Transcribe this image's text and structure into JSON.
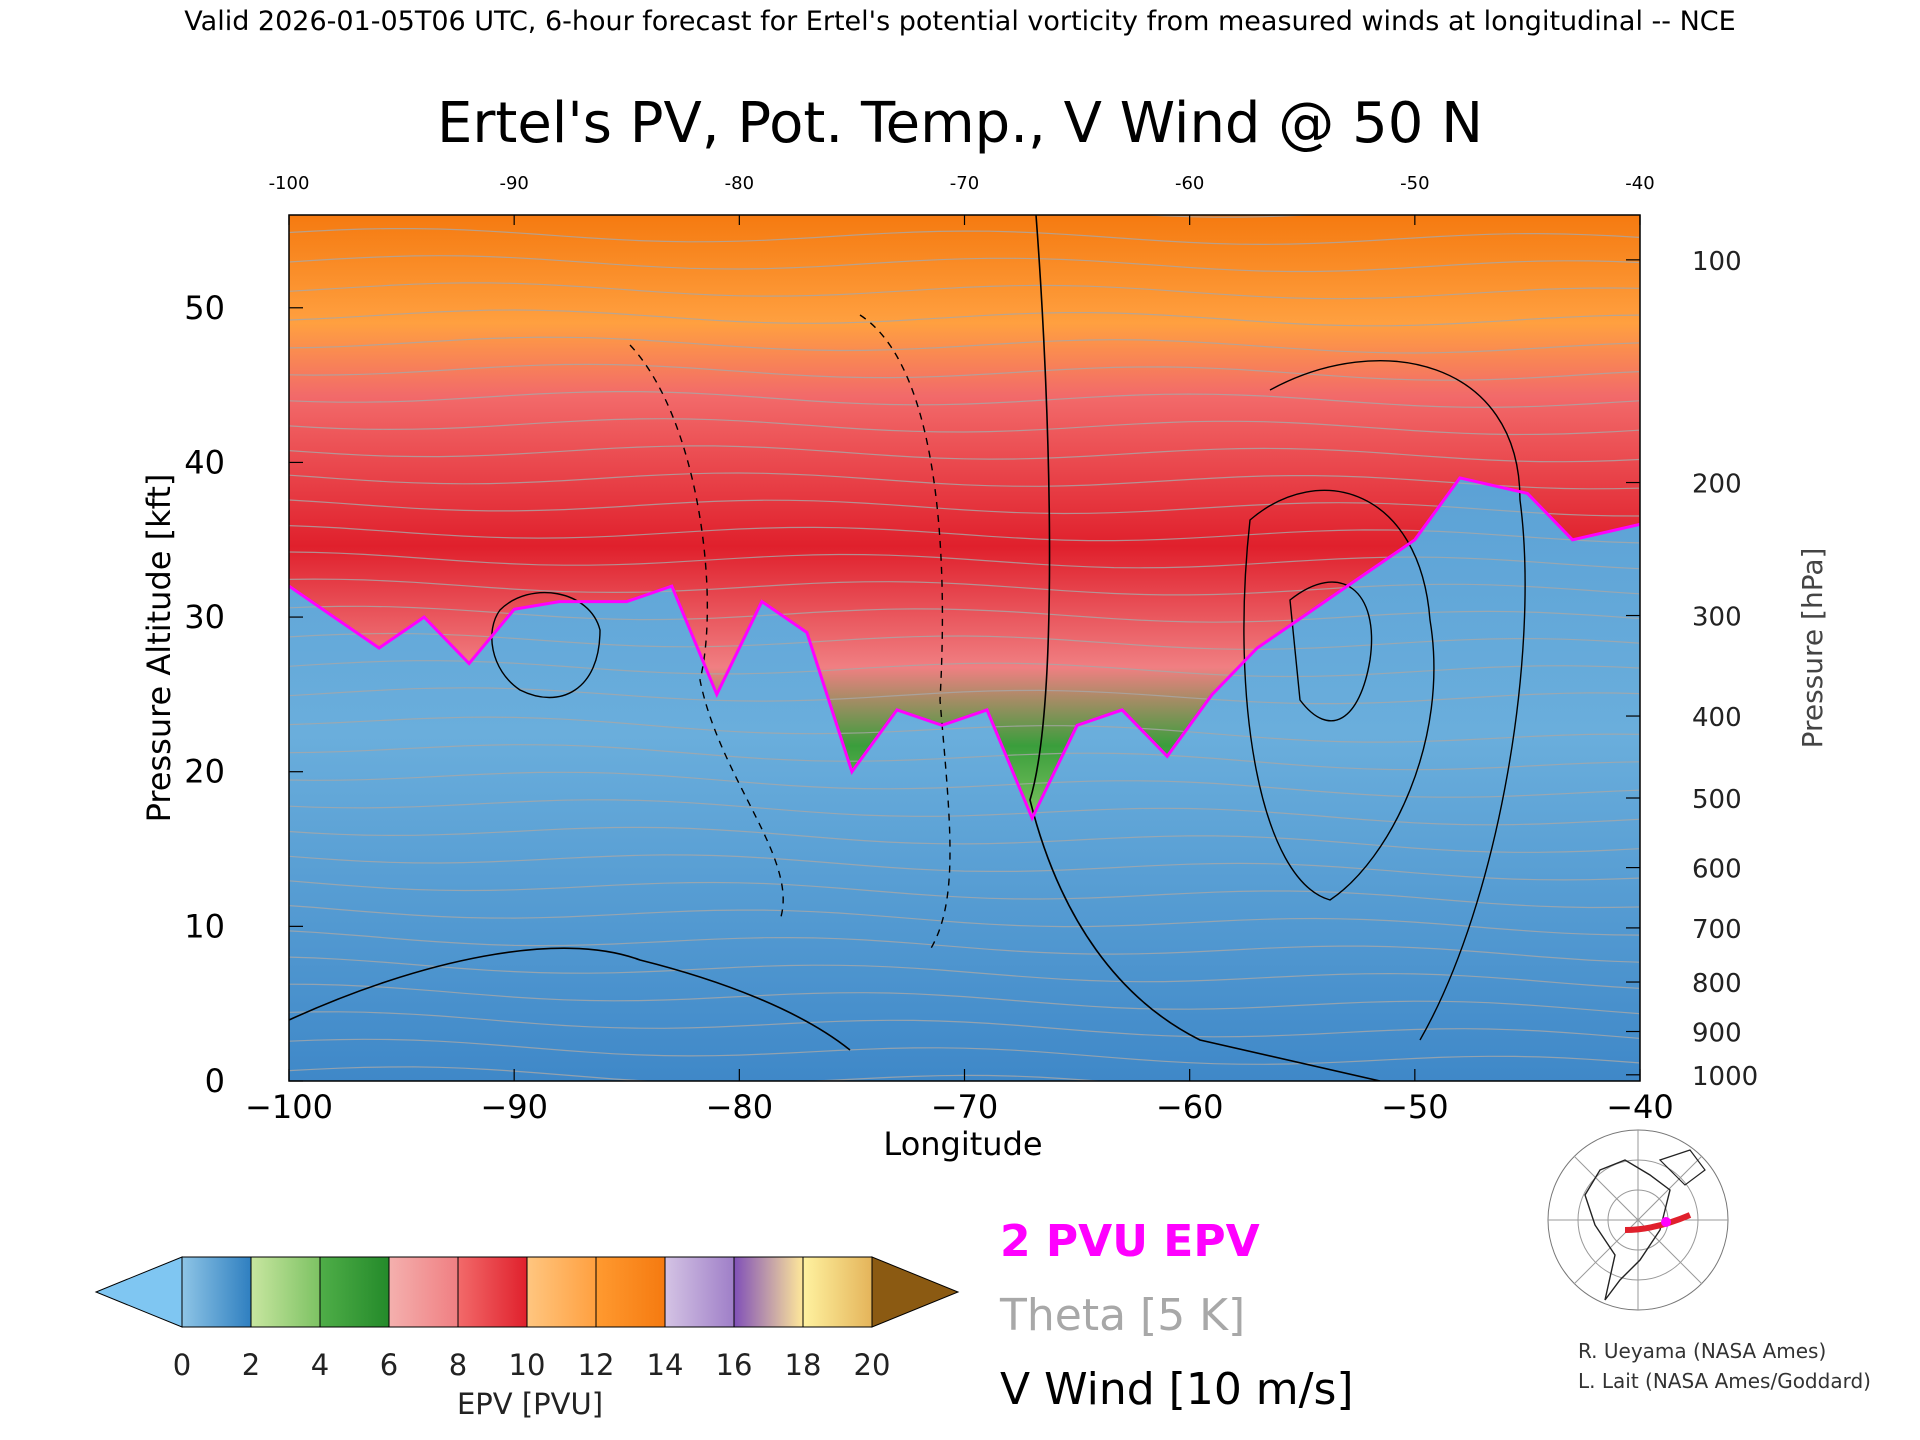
{
  "header_line": "Valid 2026-01-05T06 UTC, 6-hour forecast for Ertel's potential vorticity from measured winds at longitudinal -- NCE",
  "chart_data": {
    "type": "heatmap",
    "title": "Ertel's PV, Pot. Temp., V Wind @ 50 N",
    "xlabel": "Longitude",
    "ylabel": "Pressure Altitude [kft]",
    "y2label": "Pressure [hPa]",
    "xlim": [
      -100,
      -40
    ],
    "ylim": [
      0,
      56
    ],
    "x_ticks": [
      -100,
      -90,
      -80,
      -70,
      -60,
      -50,
      -40
    ],
    "y_ticks": [
      0,
      10,
      20,
      30,
      40,
      50
    ],
    "pressure_ticks": [
      {
        "label": "100",
        "kft": 53.1
      },
      {
        "label": "200",
        "kft": 38.7
      },
      {
        "label": "300",
        "kft": 30.1
      },
      {
        "label": "400",
        "kft": 23.6
      },
      {
        "label": "500",
        "kft": 18.3
      },
      {
        "label": "600",
        "kft": 13.8
      },
      {
        "label": "700",
        "kft": 9.9
      },
      {
        "label": "800",
        "kft": 6.4
      },
      {
        "label": "900",
        "kft": 3.2
      },
      {
        "label": "1000",
        "kft": 0.4
      }
    ],
    "colorbar": {
      "label": "EPV [PVU]",
      "ticks": [
        0,
        2,
        4,
        6,
        8,
        10,
        12,
        14,
        16,
        18,
        20
      ],
      "bins": [
        {
          "from": 0,
          "to": 2,
          "colors": [
            "#8ec5e6",
            "#2f7fc0"
          ]
        },
        {
          "from": 2,
          "to": 4,
          "colors": [
            "#c8e6a0",
            "#7dc263"
          ]
        },
        {
          "from": 4,
          "to": 6,
          "colors": [
            "#4fae48",
            "#248a2a"
          ]
        },
        {
          "from": 6,
          "to": 8,
          "colors": [
            "#f4b0ae",
            "#f07f82"
          ]
        },
        {
          "from": 8,
          "to": 10,
          "colors": [
            "#f26a6a",
            "#e0202c"
          ]
        },
        {
          "from": 10,
          "to": 12,
          "colors": [
            "#ffc680",
            "#ffa040"
          ]
        },
        {
          "from": 12,
          "to": 14,
          "colors": [
            "#ff9a30",
            "#f57a10"
          ]
        },
        {
          "from": 14,
          "to": 16,
          "colors": [
            "#d4c3e4",
            "#9f7fc8"
          ]
        },
        {
          "from": 16,
          "to": 18,
          "colors": [
            "#8050b8",
            "#ffe89a"
          ]
        },
        {
          "from": 18,
          "to": 20,
          "colors": [
            "#fff2a0",
            "#e4b45a"
          ]
        }
      ],
      "under_color": "#7fc6f2",
      "over_color": "#8b5a12"
    },
    "tropopause_2pvu": [
      {
        "lon": -100,
        "kft": 32
      },
      {
        "lon": -98,
        "kft": 30
      },
      {
        "lon": -96,
        "kft": 28
      },
      {
        "lon": -94,
        "kft": 30
      },
      {
        "lon": -92,
        "kft": 27
      },
      {
        "lon": -90,
        "kft": 30.5
      },
      {
        "lon": -88,
        "kft": 31
      },
      {
        "lon": -85,
        "kft": 31
      },
      {
        "lon": -83,
        "kft": 32
      },
      {
        "lon": -81,
        "kft": 25
      },
      {
        "lon": -79,
        "kft": 31
      },
      {
        "lon": -77,
        "kft": 29
      },
      {
        "lon": -75,
        "kft": 20
      },
      {
        "lon": -73,
        "kft": 24
      },
      {
        "lon": -71,
        "kft": 23
      },
      {
        "lon": -69,
        "kft": 24
      },
      {
        "lon": -67,
        "kft": 17
      },
      {
        "lon": -65,
        "kft": 23
      },
      {
        "lon": -63,
        "kft": 24
      },
      {
        "lon": -61,
        "kft": 21
      },
      {
        "lon": -59,
        "kft": 25
      },
      {
        "lon": -57,
        "kft": 28
      },
      {
        "lon": -55,
        "kft": 30
      },
      {
        "lon": -53,
        "kft": 32
      },
      {
        "lon": -50,
        "kft": 35
      },
      {
        "lon": -48,
        "kft": 39
      },
      {
        "lon": -45,
        "kft": 38
      },
      {
        "lon": -43,
        "kft": 35
      },
      {
        "lon": -40,
        "kft": 36
      }
    ],
    "legend": {
      "entries": [
        {
          "label": "2 PVU EPV",
          "color": "#ff00ff"
        },
        {
          "label": "Theta [5 K]",
          "color": "#a8a8a8"
        },
        {
          "label": "V Wind [10 m/s]",
          "color": "#000000"
        }
      ]
    }
  },
  "credits": {
    "line1": "R. Ueyama (NASA Ames)",
    "line2": "L. Lait (NASA Ames/Goddard)"
  },
  "inset_map": {
    "icon": "polar-map-icon",
    "track_color": "#e0202c",
    "marker_color": "#ff00ff"
  }
}
